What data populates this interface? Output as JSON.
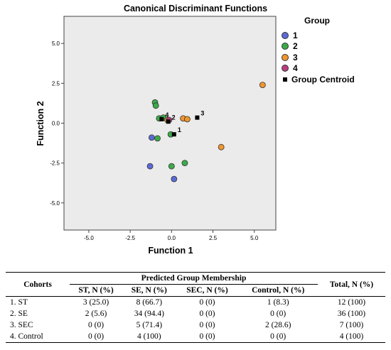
{
  "chart_data": {
    "type": "scatter",
    "title": "Canonical Discriminant Functions",
    "xlabel": "Function 1",
    "ylabel": "Function 2",
    "xlim": [
      -6.5,
      6.3
    ],
    "ylim": [
      -6.7,
      6.7
    ],
    "xticks": [
      "-5.0",
      "-2.5",
      "0.0",
      "2.5",
      "5.0"
    ],
    "xtick_values": [
      -5.0,
      -2.5,
      0.0,
      2.5,
      5.0
    ],
    "yticks": [
      "5.0",
      "2.5",
      "0.0",
      "-2.5",
      "-5.0"
    ],
    "ytick_values": [
      5.0,
      2.5,
      0.0,
      -2.5,
      -5.0
    ],
    "grid": false,
    "legend_placement": "right",
    "legend_title": "Group",
    "background": "#ebebeb",
    "series": [
      {
        "name": "1",
        "color": "#5b6bd5",
        "points": [
          [
            -1.2,
            -0.9
          ],
          [
            -1.3,
            -2.7
          ],
          [
            0.15,
            -3.5
          ]
        ]
      },
      {
        "name": "2",
        "color": "#3daa4a",
        "points": [
          [
            -1.0,
            1.3
          ],
          [
            -0.95,
            1.1
          ],
          [
            -0.75,
            0.3
          ],
          [
            -0.5,
            0.35
          ],
          [
            -0.85,
            -0.95
          ],
          [
            -0.05,
            -0.7
          ],
          [
            0.0,
            -2.7
          ],
          [
            0.8,
            -2.5
          ]
        ]
      },
      {
        "name": "3",
        "color": "#f0962e",
        "points": [
          [
            5.5,
            2.4
          ],
          [
            3.0,
            -1.5
          ],
          [
            0.7,
            0.3
          ],
          [
            0.95,
            0.25
          ],
          [
            -0.25,
            0.2
          ]
        ]
      },
      {
        "name": "4",
        "color": "#b83d7f",
        "points": [
          [
            -0.15,
            0.2
          ]
        ]
      }
    ],
    "centroids": [
      {
        "label": "1",
        "x": 0.15,
        "y": -0.7
      },
      {
        "label": "2",
        "x": -0.2,
        "y": 0.1
      },
      {
        "label": "3",
        "x": 1.55,
        "y": 0.35
      },
      {
        "label": "4",
        "x": -0.6,
        "y": 0.25
      }
    ],
    "centroid_legend": "Group Centroid"
  },
  "table": {
    "header_cohorts": "Cohorts",
    "header_group": "Predicted Group Membership",
    "header_total": "Total, N (%)",
    "sub_headers": [
      "ST, N (%)",
      "SE, N (%)",
      "SEC, N (%)",
      "Control, N (%)"
    ],
    "rows": [
      [
        "1. ST",
        "3 (25.0)",
        "8 (66.7)",
        "0 (0)",
        "1 (8.3)",
        "12 (100)"
      ],
      [
        "2. SE",
        "2 (5.6)",
        "34 (94.4)",
        "0 (0)",
        "0 (0)",
        "36 (100)"
      ],
      [
        "3. SEC",
        "0 (0)",
        "5 (71.4)",
        "0 (0)",
        "2 (28.6)",
        "7 (100)"
      ],
      [
        "4. Control",
        "0 (0)",
        "4 (100)",
        "0 (0)",
        "0 (0)",
        "4 (100)"
      ]
    ]
  }
}
